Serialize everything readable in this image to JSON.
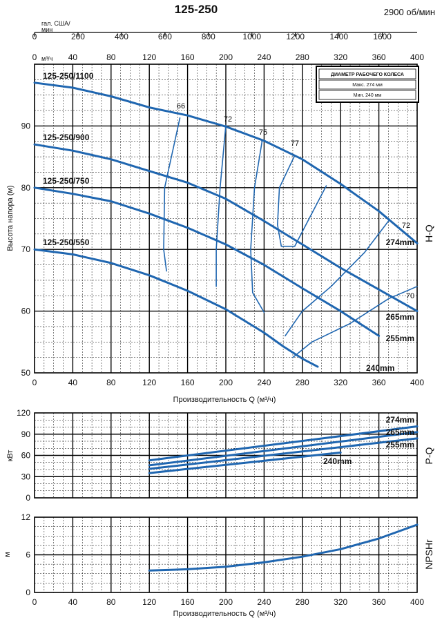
{
  "header": {
    "title": "125-250",
    "speed": "2900 об/мин"
  },
  "top_axes": {
    "gpm_unit_line1": "гал. США/",
    "gpm_unit_line2": "мин",
    "gpm_ticks": [
      "0",
      "200",
      "400",
      "600",
      "800",
      "1000",
      "1200",
      "1400",
      "1600"
    ],
    "m3h_unit": "м³/ч",
    "m3h_ticks": [
      "0",
      "40",
      "80",
      "120",
      "160",
      "200",
      "240",
      "280",
      "320",
      "360",
      "400"
    ]
  },
  "legend": {
    "heading": "ДИАМЕТР РАБОЧЕГО КОЛЕСА",
    "max": "Макс. 274 мм",
    "min": "Мин. 240 мм"
  },
  "chart_data": [
    {
      "id": "hq",
      "type": "line",
      "panel_label": "H-Q",
      "ylabel": "Высота напора (м)",
      "xlabel": "Производительность Q (м³/ч)",
      "xlim": [
        0,
        400
      ],
      "ylim": [
        50,
        100
      ],
      "x_ticks": [
        "0",
        "40",
        "80",
        "120",
        "160",
        "200",
        "240",
        "280",
        "320",
        "360",
        "400"
      ],
      "y_ticks": [
        "50",
        "60",
        "70",
        "80",
        "90"
      ],
      "y_tick_values": [
        50,
        60,
        70,
        80,
        90
      ],
      "grid": true,
      "series": [
        {
          "name": "274mm",
          "x": [
            0,
            40,
            80,
            120,
            160,
            200,
            240,
            280,
            320,
            360,
            400
          ],
          "y": [
            97,
            96.2,
            94.8,
            93,
            91.7,
            89.9,
            87.6,
            84.6,
            80.6,
            76.2,
            71
          ]
        },
        {
          "name": "265mm",
          "x": [
            0,
            40,
            80,
            120,
            160,
            200,
            240,
            280,
            320,
            360,
            400
          ],
          "y": [
            87,
            86,
            84.6,
            82.7,
            80.8,
            78.2,
            74.6,
            70.8,
            67,
            63.5,
            60
          ]
        },
        {
          "name": "255mm",
          "x": [
            0,
            40,
            80,
            120,
            160,
            200,
            240,
            280,
            320,
            360
          ],
          "y": [
            80,
            79,
            77.8,
            75.8,
            73.5,
            70.8,
            67.5,
            63.7,
            60,
            56
          ]
        },
        {
          "name": "240mm",
          "x": [
            0,
            40,
            80,
            120,
            160,
            200,
            240,
            260,
            280,
            296
          ],
          "y": [
            70,
            69.2,
            67.8,
            65.8,
            63.3,
            60.3,
            56.5,
            54.3,
            52.3,
            51
          ]
        }
      ],
      "curve_labels": [
        {
          "text": "125-250/1100",
          "series": "274mm"
        },
        {
          "text": "125-250/900",
          "series": "265mm"
        },
        {
          "text": "125-250/750",
          "series": "255mm"
        },
        {
          "text": "125-250/550",
          "series": "240mm"
        }
      ],
      "end_labels": [
        "274mm",
        "265mm",
        "255mm",
        "240mm"
      ],
      "efficiency_labels": [
        "66",
        "72",
        "75",
        "77",
        "72",
        "70"
      ],
      "efficiency_contours": [
        {
          "x": [
            152,
            136,
            135,
            138
          ],
          "y": [
            91.3,
            80,
            70,
            66.5
          ]
        },
        {
          "x": [
            200,
            194,
            190,
            190
          ],
          "y": [
            90.1,
            80,
            70,
            64
          ]
        },
        {
          "x": [
            238,
            230,
            226,
            228,
            240
          ],
          "y": [
            87.6,
            80,
            70,
            63,
            59.8
          ]
        },
        {
          "x": [
            272,
            256,
            254,
            258,
            272,
            305
          ],
          "y": [
            85.2,
            80,
            74,
            70.5,
            70.5,
            80.3
          ]
        },
        {
          "x": [
            370,
            345,
            310,
            280,
            262
          ],
          "y": [
            74.6,
            69.5,
            64,
            60,
            56
          ]
        },
        {
          "x": [
            400,
            370,
            330,
            290,
            270
          ],
          "y": [
            64,
            62,
            58,
            55,
            52.5
          ]
        }
      ]
    },
    {
      "id": "pq",
      "type": "line",
      "panel_label": "P-Q",
      "ylabel": "кВт",
      "xlim": [
        0,
        400
      ],
      "ylim": [
        0,
        120
      ],
      "y_ticks": [
        "0",
        "30",
        "60",
        "90",
        "120"
      ],
      "y_tick_values": [
        0,
        30,
        60,
        90,
        120
      ],
      "grid": true,
      "series": [
        {
          "name": "274mm",
          "x": [
            120,
            400
          ],
          "y": [
            53,
            101
          ]
        },
        {
          "name": "265mm",
          "x": [
            120,
            400
          ],
          "y": [
            46,
            93
          ]
        },
        {
          "name": "255mm",
          "x": [
            120,
            400
          ],
          "y": [
            41,
            84
          ]
        },
        {
          "name": "240mm",
          "x": [
            120,
            320
          ],
          "y": [
            35,
            64
          ]
        }
      ]
    },
    {
      "id": "npsh",
      "type": "line",
      "panel_label": "NPSHr",
      "ylabel": "м",
      "xlabel": "Производительность Q (м³/ч)",
      "xlim": [
        0,
        400
      ],
      "ylim": [
        0,
        12
      ],
      "x_ticks": [
        "0",
        "40",
        "80",
        "120",
        "160",
        "200",
        "240",
        "280",
        "320",
        "360",
        "400"
      ],
      "y_ticks": [
        "0",
        "6",
        "12"
      ],
      "y_tick_values": [
        0,
        6,
        12
      ],
      "grid": true,
      "series": [
        {
          "name": "NPSHr",
          "x": [
            120,
            160,
            200,
            240,
            280,
            320,
            360,
            400
          ],
          "y": [
            3.5,
            3.7,
            4.1,
            4.8,
            5.7,
            6.9,
            8.6,
            10.8
          ]
        }
      ]
    }
  ]
}
